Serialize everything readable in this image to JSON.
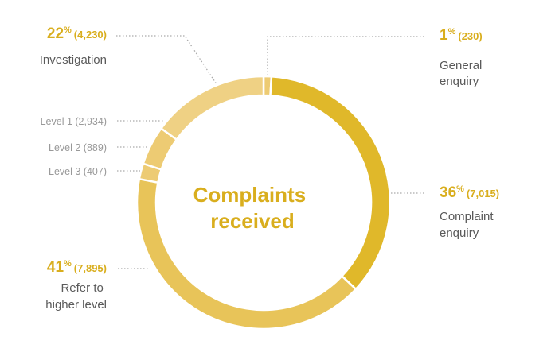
{
  "chart_data": {
    "type": "pie",
    "variant": "donut",
    "center_label": [
      "Complaints",
      "received"
    ],
    "slices": [
      {
        "id": "general",
        "percent": 1,
        "count": "230",
        "label": [
          "General",
          "enquiry"
        ],
        "color": "#EDCB73"
      },
      {
        "id": "complaint",
        "percent": 36,
        "count": "7,015",
        "label": [
          "Complaint",
          "enquiry"
        ],
        "color": "#E0B82A"
      },
      {
        "id": "refer",
        "percent": 41,
        "count": "7,895",
        "label": [
          "Refer to",
          "higher level"
        ],
        "color": "#E8C459"
      },
      {
        "id": "level3",
        "percent": 2,
        "count": "407",
        "label": [
          "Level 3"
        ],
        "color": "#EDCB73"
      },
      {
        "id": "level2",
        "percent": 5,
        "count": "889",
        "label": [
          "Level 2"
        ],
        "color": "#EDCB73"
      },
      {
        "id": "level1",
        "percent": 15,
        "count": "2,934",
        "label": [
          "Level 1"
        ],
        "color": "#EFD184"
      }
    ],
    "investigation": {
      "percent": 22,
      "count": "4,230",
      "label": "Investigation"
    },
    "colors": {
      "accent": "#D9AE1E",
      "text": "#5A5A5A",
      "muted": "#999999",
      "leader": "#AAAAAA"
    }
  },
  "text": {
    "pct_22": "22",
    "cnt_22": "(4,230)",
    "lbl_investigation": "Investigation",
    "pct_1": "1",
    "cnt_1": "(230)",
    "lbl_general_1": "General",
    "lbl_general_2": "enquiry",
    "pct_36": "36",
    "cnt_36": "(7,015)",
    "lbl_complaint_1": "Complaint",
    "lbl_complaint_2": "enquiry",
    "pct_41": "41",
    "cnt_41": "(7,895)",
    "lbl_refer_1": "Refer to",
    "lbl_refer_2": "higher level",
    "level1": "Level 1 (2,934)",
    "level2": "Level 2 (889)",
    "level3": "Level 3 (407)",
    "percent_sign": "%",
    "center_1": "Complaints",
    "center_2": "received"
  }
}
